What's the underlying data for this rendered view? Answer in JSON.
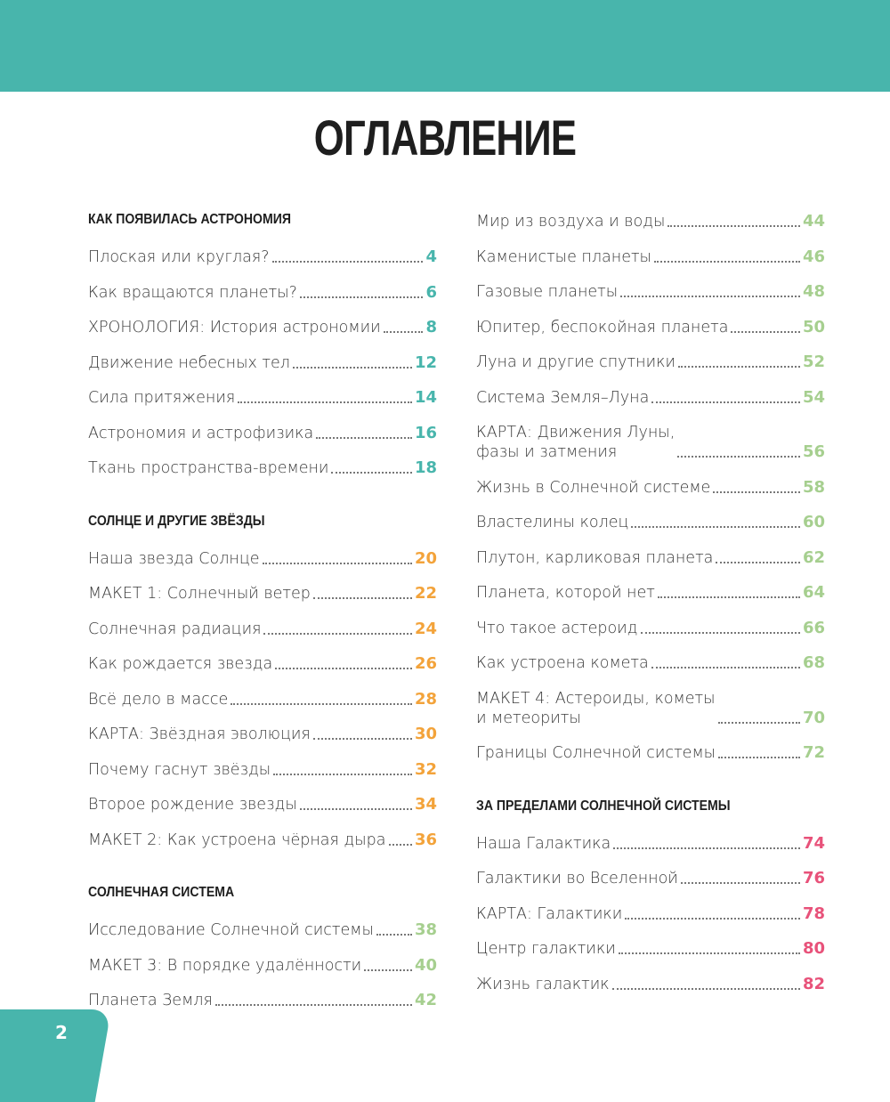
{
  "colors": {
    "teal": "#48b5ac",
    "orange": "#f3a33a",
    "green": "#a6cf8f",
    "pink": "#e8527a"
  },
  "title": "ОГЛАВЛЕНИЕ",
  "page_number": "2",
  "left": [
    {
      "heading": "КАК ПОЯВИЛАСЬ АСТРОНОМИЯ",
      "color": "#48b5ac",
      "items": [
        {
          "t": "Плоская или круглая?",
          "n": "4"
        },
        {
          "t": "Как вращаются планеты?",
          "n": "6"
        },
        {
          "t": "ХРОНОЛОГИЯ: История астрономии",
          "n": "8"
        },
        {
          "t": "Движение небесных тел",
          "n": "12"
        },
        {
          "t": "Сила притяжения",
          "n": "14"
        },
        {
          "t": "Астрономия и астрофизика",
          "n": "16"
        },
        {
          "t": "Ткань пространства-времени",
          "n": "18"
        }
      ]
    },
    {
      "heading": "СОЛНЦЕ И ДРУГИЕ ЗВЁЗДЫ",
      "color": "#f3a33a",
      "items": [
        {
          "t": "Наша звезда Солнце",
          "n": "20"
        },
        {
          "t": "МАКЕТ 1: Солнечный ветер",
          "n": "22"
        },
        {
          "t": "Солнечная радиация",
          "n": "24"
        },
        {
          "t": "Как рождается звезда",
          "n": "26"
        },
        {
          "t": "Всё дело в массе",
          "n": "28"
        },
        {
          "t": "КАРТА: Звёздная эволюция",
          "n": "30"
        },
        {
          "t": "Почему гаснут звёзды",
          "n": "32"
        },
        {
          "t": "Второе рождение звезды",
          "n": "34"
        },
        {
          "t": "МАКЕТ 2: Как устроена чёрная дыра",
          "n": "36"
        }
      ]
    },
    {
      "heading": "СОЛНЕЧНАЯ СИСТЕМА",
      "color": "#a6cf8f",
      "items": [
        {
          "t": "Исследование Солнечной системы",
          "n": "38"
        },
        {
          "t": "МАКЕТ 3: В порядке удалённости",
          "n": "40"
        },
        {
          "t": "Планета Земля",
          "n": "42"
        }
      ]
    }
  ],
  "right": [
    {
      "heading": "",
      "color": "#a6cf8f",
      "items": [
        {
          "t": "Мир из воздуха и воды",
          "n": "44"
        },
        {
          "t": "Каменистые планеты",
          "n": "46"
        },
        {
          "t": "Газовые планеты",
          "n": "48"
        },
        {
          "t": "Юпитер, беспокойная планета",
          "n": "50"
        },
        {
          "t": "Луна и другие спутники",
          "n": "52"
        },
        {
          "t": "Система Земля–Луна",
          "n": "54"
        },
        {
          "t": "КАРТА: Движения Луны,\nфазы и затмения",
          "n": "56"
        },
        {
          "t": "Жизнь в Солнечной системе",
          "n": "58"
        },
        {
          "t": "Властелины колец",
          "n": "60"
        },
        {
          "t": "Плутон, карликовая планета",
          "n": "62"
        },
        {
          "t": "Планета, которой нет",
          "n": "64"
        },
        {
          "t": "Что такое астероид",
          "n": "66"
        },
        {
          "t": "Как устроена комета",
          "n": "68"
        },
        {
          "t": "МАКЕТ 4: Астероиды, кометы\nи метеориты",
          "n": "70"
        },
        {
          "t": "Границы Солнечной системы",
          "n": "72"
        }
      ]
    },
    {
      "heading": "ЗА ПРЕДЕЛАМИ СОЛНЕЧНОЙ СИСТЕМЫ",
      "color": "#e8527a",
      "items": [
        {
          "t": "Наша Галактика",
          "n": "74"
        },
        {
          "t": "Галактики во Вселенной",
          "n": "76"
        },
        {
          "t": "КАРТА: Галактики",
          "n": "78"
        },
        {
          "t": "Центр галактики",
          "n": "80"
        },
        {
          "t": "Жизнь галактик",
          "n": "82"
        }
      ]
    }
  ]
}
